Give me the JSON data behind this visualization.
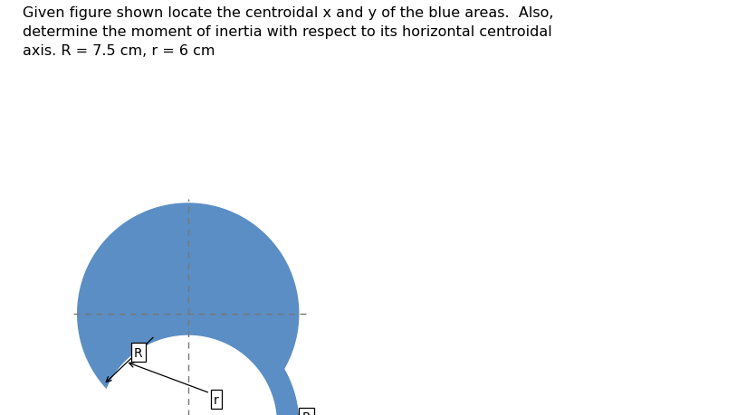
{
  "title_text": "Given figure shown locate the centroidal x and y of the blue areas.  Also,\ndetermine the moment of inertia with respect to its horizontal centroidal\naxis. R = 7.5 cm, r = 6 cm",
  "R": 7.5,
  "r": 6.0,
  "blue_color": "#5b8ec4",
  "white_color": "#ffffff",
  "background_color": "#ffffff",
  "text_color": "#000000",
  "label_R_left": "R",
  "label_R_right": "R",
  "label_r": "r",
  "title_fontsize": 11.5
}
